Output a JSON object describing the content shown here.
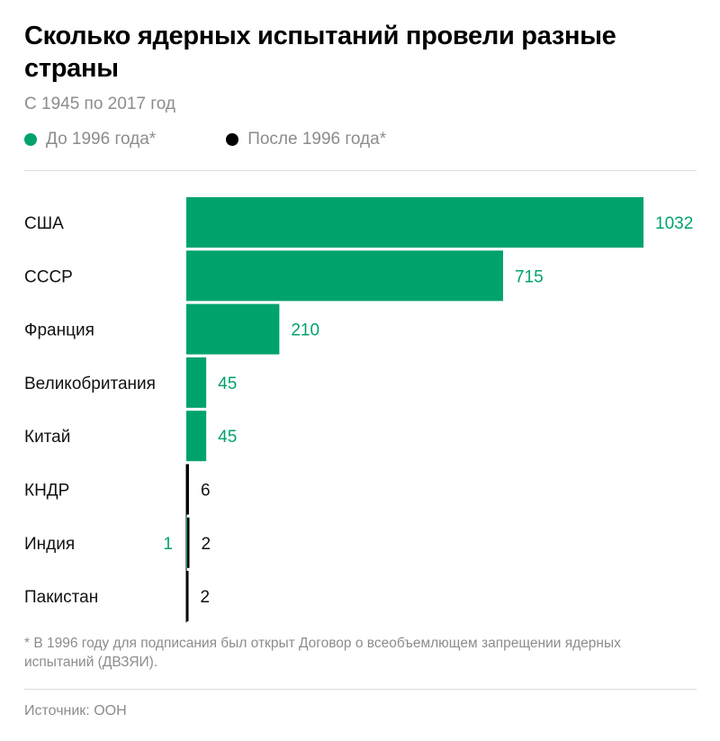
{
  "title": "Сколько ядерных испытаний провели разные страны",
  "subtitle": "С 1945 по 2017 год",
  "colors": {
    "before": "#00a36c",
    "after": "#000000",
    "muted": "#8c8c8c"
  },
  "legend": [
    {
      "label": "До 1996 года*",
      "color": "#00a36c"
    },
    {
      "label": "После 1996 года*",
      "color": "#000000"
    }
  ],
  "chart_data": {
    "type": "bar",
    "orientation": "horizontal",
    "stacked": true,
    "categories": [
      "США",
      "СССР",
      "Франция",
      "Великобритания",
      "Китай",
      "КНДР",
      "Индия",
      "Пакистан"
    ],
    "series": [
      {
        "name": "До 1996 года*",
        "values": [
          1032,
          715,
          210,
          45,
          45,
          0,
          1,
          0
        ]
      },
      {
        "name": "После 1996 года*",
        "values": [
          0,
          0,
          0,
          0,
          0,
          6,
          2,
          2
        ]
      }
    ],
    "value_labels": {
      "before": [
        "1032",
        "715",
        "210",
        "45",
        "45",
        "",
        "1",
        ""
      ],
      "after": [
        "",
        "",
        "",
        "",
        "",
        "6",
        "2",
        "2"
      ]
    },
    "xlim": [
      0,
      1032
    ],
    "grid": false,
    "legend_position": "top"
  },
  "footnote": "* В 1996 году для подписания был открыт Договор о всеобъемлющем запрещении ядерных испытаний (ДВЗЯИ).",
  "source": "Источник: ООН"
}
